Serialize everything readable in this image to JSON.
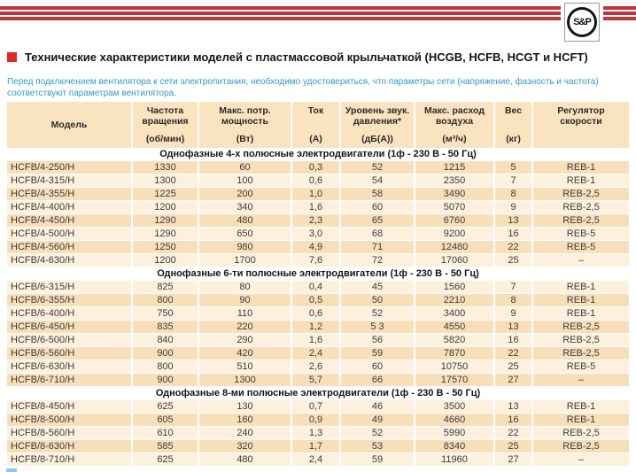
{
  "logo": {
    "text": "S&P"
  },
  "header": {
    "title": "Технические характеристики моделей с пластмассовой крыльчаткой (HCGB, HCFB, HCGT и HCFT)",
    "note": "Перед подключением вентилятора к сети электропитания, необходимо удостовериться, что параметры сети (напряжение, фазность и частота) соответствуют параметрам вентилятора."
  },
  "table": {
    "columns": [
      {
        "label": "Модель",
        "unit": ""
      },
      {
        "label": "Частота\nвращения",
        "unit": "(об/мин)"
      },
      {
        "label": "Макс. потр.\nмощность",
        "unit": "(Вт)"
      },
      {
        "label": "Ток",
        "unit": "(А)"
      },
      {
        "label": "Уровень звук.\nдавления*",
        "unit": "(дБ(А))"
      },
      {
        "label": "Макс. расход\nвоздуха",
        "unit": "(м³/ч)"
      },
      {
        "label": "Вес",
        "unit": "(кг)"
      },
      {
        "label": "Регулятор\nскорости",
        "unit": ""
      }
    ],
    "sections": [
      {
        "title": "Однофазные 4-х полюсные электродвигатели (1ф - 230 В - 50 Гц)",
        "start_shade": "dark",
        "rows": [
          [
            "HCFB/4-250/H",
            "1330",
            "60",
            "0,3",
            "52",
            "1215",
            "5",
            "REB-1"
          ],
          [
            "HCFB/4-315/H",
            "1300",
            "100",
            "0,6",
            "54",
            "2350",
            "7",
            "REB-1"
          ],
          [
            "HCFB/4-355/H",
            "1225",
            "200",
            "1,0",
            "58",
            "3490",
            "8",
            "REB-2,5"
          ],
          [
            "HCFB/4-400/H",
            "1200",
            "340",
            "1,6",
            "60",
            "5070",
            "9",
            "REB-2,5"
          ],
          [
            "HCFB/4-450/H",
            "1290",
            "480",
            "2,3",
            "65",
            "6760",
            "13",
            "REB-2,5"
          ],
          [
            "HCFB/4-500/H",
            "1290",
            "650",
            "3,0",
            "68",
            "9200",
            "16",
            "REB-5"
          ],
          [
            "HCFB/4-560/H",
            "1250",
            "980",
            "4,9",
            "71",
            "12480",
            "22",
            "REB-5"
          ],
          [
            "HCFB/4-630/H",
            "1200",
            "1700",
            "7,6",
            "72",
            "17060",
            "25",
            "–"
          ]
        ]
      },
      {
        "title": "Однофазные 6-ти полюсные электродвигатели (1ф - 230 В - 50 Гц)",
        "start_shade": "light",
        "rows": [
          [
            "HCFB/6-315/H",
            "825",
            "80",
            "0,4",
            "45",
            "1560",
            "7",
            "REB-1"
          ],
          [
            "HCFB/6-355/H",
            "800",
            "90",
            "0,5",
            "50",
            "2210",
            "8",
            "REB-1"
          ],
          [
            "HCFB/6-400/H",
            "750",
            "110",
            "0,6",
            "52",
            "3400",
            "9",
            "REB-1"
          ],
          [
            "HCFB/6-450/H",
            "835",
            "220",
            "1,2",
            "5 3",
            "4550",
            "13",
            "REB-2,5"
          ],
          [
            "HCFB/6-500/H",
            "840",
            "290",
            "1,6",
            "56",
            "5820",
            "16",
            "REB-2,5"
          ],
          [
            "HCFB/6-560/H",
            "900",
            "420",
            "2,4",
            "59",
            "7870",
            "22",
            "REB-2,5"
          ],
          [
            "HCFB/6-630/H",
            "800",
            "510",
            "2,6",
            "60",
            "10750",
            "25",
            "REB-5"
          ],
          [
            "HCFB/6-710/H",
            "900",
            "1300",
            "5,7",
            "66",
            "17570",
            "27",
            "–"
          ]
        ]
      },
      {
        "title": "Однофазные 8-ми полюсные электродвигатели (1ф - 230 В - 50 Гц)",
        "start_shade": "light",
        "rows": [
          [
            "HCFB/8-450/H",
            "625",
            "130",
            "0,7",
            "46",
            "3500",
            "13",
            "REB-1"
          ],
          [
            "HCFB/8-500/H",
            "605",
            "160",
            "0,9",
            "49",
            "4660",
            "16",
            "REB-1"
          ],
          [
            "HCFB/8-560/H",
            "610",
            "240",
            "1,3",
            "52",
            "5990",
            "22",
            "REB-2,5"
          ],
          [
            "HCFB/8-630/H",
            "585",
            "320",
            "1,7",
            "53",
            "8340",
            "25",
            "REB-2,5"
          ],
          [
            "HCFB/8-710/H",
            "625",
            "480",
            "2,4",
            "59",
            "11960",
            "27",
            "–"
          ]
        ]
      }
    ]
  },
  "colors": {
    "stripe_red": "#C23439",
    "bullet_red": "#E22726",
    "note_blue": "#2E9AC9",
    "header_beige": "#FAE3BF",
    "row_dark": "#F8DFB9",
    "row_light": "#FCF1DD",
    "text_dark": "#3C3C3C"
  }
}
